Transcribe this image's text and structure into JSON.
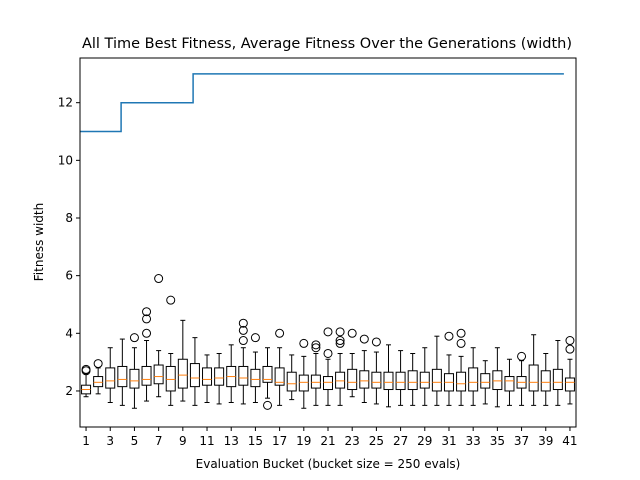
{
  "chart_data": {
    "type": "line+boxplot",
    "title": "All Time Best Fitness, Average Fitness Over the Generations (width)",
    "xlabel": "Evaluation Bucket (bucket size = 250 evals)",
    "ylabel": "Fitness width",
    "xlim": [
      0.5,
      41.5
    ],
    "ylim": [
      0.75,
      13.55
    ],
    "xticks": [
      1,
      3,
      5,
      7,
      9,
      11,
      13,
      15,
      17,
      19,
      21,
      23,
      25,
      27,
      29,
      31,
      33,
      35,
      37,
      39,
      41
    ],
    "yticks": [
      2,
      4,
      6,
      8,
      10,
      12
    ],
    "colors": {
      "best_line": "#1f77b4",
      "median": "#ff7f0e",
      "box": "#000000"
    },
    "best_fitness": {
      "x": [
        0.5,
        3.9,
        3.9,
        9.85,
        9.85,
        40.5
      ],
      "y": [
        11,
        11,
        12,
        12,
        13,
        13
      ]
    },
    "boxplots": [
      {
        "x": 1,
        "q1": 1.9,
        "median": 2.05,
        "q3": 2.2,
        "whislo": 1.8,
        "whishi": 2.6,
        "fliers": [
          2.7,
          2.75
        ]
      },
      {
        "x": 2,
        "q1": 2.15,
        "median": 2.3,
        "q3": 2.5,
        "whislo": 1.9,
        "whishi": 2.8,
        "fliers": [
          2.95
        ]
      },
      {
        "x": 3,
        "q1": 2.1,
        "median": 2.35,
        "q3": 2.8,
        "whislo": 1.6,
        "whishi": 3.5,
        "fliers": []
      },
      {
        "x": 4,
        "q1": 2.15,
        "median": 2.4,
        "q3": 2.85,
        "whislo": 1.5,
        "whishi": 3.8,
        "fliers": []
      },
      {
        "x": 5,
        "q1": 2.1,
        "median": 2.35,
        "q3": 2.75,
        "whislo": 1.4,
        "whishi": 3.5,
        "fliers": [
          3.85
        ]
      },
      {
        "x": 6,
        "q1": 2.2,
        "median": 2.4,
        "q3": 2.85,
        "whislo": 1.65,
        "whishi": 3.75,
        "fliers": [
          4.0,
          4.5,
          4.75
        ]
      },
      {
        "x": 7,
        "q1": 2.25,
        "median": 2.5,
        "q3": 2.9,
        "whislo": 1.8,
        "whishi": 3.4,
        "fliers": [
          5.9
        ]
      },
      {
        "x": 8,
        "q1": 2.0,
        "median": 2.4,
        "q3": 2.85,
        "whislo": 1.5,
        "whishi": 3.3,
        "fliers": [
          5.15
        ]
      },
      {
        "x": 9,
        "q1": 2.1,
        "median": 2.55,
        "q3": 3.1,
        "whislo": 1.65,
        "whishi": 4.45,
        "fliers": []
      },
      {
        "x": 10,
        "q1": 2.15,
        "median": 2.45,
        "q3": 2.95,
        "whislo": 1.5,
        "whishi": 3.85,
        "fliers": []
      },
      {
        "x": 11,
        "q1": 2.2,
        "median": 2.4,
        "q3": 2.8,
        "whislo": 1.6,
        "whishi": 3.25,
        "fliers": []
      },
      {
        "x": 12,
        "q1": 2.2,
        "median": 2.45,
        "q3": 2.8,
        "whislo": 1.55,
        "whishi": 3.3,
        "fliers": []
      },
      {
        "x": 13,
        "q1": 2.15,
        "median": 2.5,
        "q3": 2.85,
        "whislo": 1.6,
        "whishi": 3.6,
        "fliers": []
      },
      {
        "x": 14,
        "q1": 2.2,
        "median": 2.45,
        "q3": 2.85,
        "whislo": 1.55,
        "whishi": 3.5,
        "fliers": [
          3.75,
          4.1,
          4.35
        ]
      },
      {
        "x": 15,
        "q1": 2.15,
        "median": 2.4,
        "q3": 2.75,
        "whislo": 1.6,
        "whishi": 3.35,
        "fliers": [
          3.85
        ]
      },
      {
        "x": 16,
        "q1": 2.3,
        "median": 2.4,
        "q3": 2.85,
        "whislo": 1.75,
        "whishi": 3.5,
        "fliers": [
          1.5
        ]
      },
      {
        "x": 17,
        "q1": 2.2,
        "median": 2.3,
        "q3": 2.8,
        "whislo": 1.5,
        "whishi": 3.5,
        "fliers": [
          4.0
        ]
      },
      {
        "x": 18,
        "q1": 2.0,
        "median": 2.25,
        "q3": 2.65,
        "whislo": 1.7,
        "whishi": 3.25,
        "fliers": []
      },
      {
        "x": 19,
        "q1": 2.0,
        "median": 2.3,
        "q3": 2.55,
        "whislo": 1.4,
        "whishi": 3.2,
        "fliers": [
          3.65
        ]
      },
      {
        "x": 20,
        "q1": 2.1,
        "median": 2.3,
        "q3": 2.55,
        "whislo": 1.5,
        "whishi": 3.3,
        "fliers": [
          3.5,
          3.6
        ]
      },
      {
        "x": 21,
        "q1": 2.05,
        "median": 2.3,
        "q3": 2.5,
        "whislo": 1.5,
        "whishi": 3.1,
        "fliers": [
          3.3,
          4.05
        ]
      },
      {
        "x": 22,
        "q1": 2.1,
        "median": 2.35,
        "q3": 2.65,
        "whislo": 1.5,
        "whishi": 3.3,
        "fliers": [
          3.65,
          3.75,
          4.05
        ]
      },
      {
        "x": 23,
        "q1": 2.05,
        "median": 2.3,
        "q3": 2.75,
        "whislo": 1.8,
        "whishi": 3.3,
        "fliers": [
          4.0
        ]
      },
      {
        "x": 24,
        "q1": 2.1,
        "median": 2.35,
        "q3": 2.7,
        "whislo": 1.6,
        "whishi": 3.4,
        "fliers": [
          3.8
        ]
      },
      {
        "x": 25,
        "q1": 2.1,
        "median": 2.3,
        "q3": 2.65,
        "whislo": 1.55,
        "whishi": 3.35,
        "fliers": [
          3.7
        ]
      },
      {
        "x": 26,
        "q1": 2.05,
        "median": 2.3,
        "q3": 2.65,
        "whislo": 1.45,
        "whishi": 3.6,
        "fliers": []
      },
      {
        "x": 27,
        "q1": 2.05,
        "median": 2.3,
        "q3": 2.65,
        "whislo": 1.5,
        "whishi": 3.4,
        "fliers": []
      },
      {
        "x": 28,
        "q1": 2.05,
        "median": 2.3,
        "q3": 2.7,
        "whislo": 1.5,
        "whishi": 3.3,
        "fliers": []
      },
      {
        "x": 29,
        "q1": 2.1,
        "median": 2.3,
        "q3": 2.65,
        "whislo": 1.5,
        "whishi": 3.5,
        "fliers": []
      },
      {
        "x": 30,
        "q1": 2.0,
        "median": 2.3,
        "q3": 2.75,
        "whislo": 1.5,
        "whishi": 3.9,
        "fliers": []
      },
      {
        "x": 31,
        "q1": 2.0,
        "median": 2.3,
        "q3": 2.6,
        "whislo": 1.5,
        "whishi": 3.25,
        "fliers": [
          3.9
        ]
      },
      {
        "x": 32,
        "q1": 2.0,
        "median": 2.25,
        "q3": 2.65,
        "whislo": 1.5,
        "whishi": 3.2,
        "fliers": [
          3.65,
          4.0
        ]
      },
      {
        "x": 33,
        "q1": 2.0,
        "median": 2.3,
        "q3": 2.8,
        "whislo": 1.5,
        "whishi": 3.5,
        "fliers": []
      },
      {
        "x": 34,
        "q1": 2.1,
        "median": 2.3,
        "q3": 2.6,
        "whislo": 1.55,
        "whishi": 3.05,
        "fliers": []
      },
      {
        "x": 35,
        "q1": 2.05,
        "median": 2.35,
        "q3": 2.7,
        "whislo": 1.45,
        "whishi": 3.5,
        "fliers": []
      },
      {
        "x": 36,
        "q1": 2.0,
        "median": 2.35,
        "q3": 2.5,
        "whislo": 1.5,
        "whishi": 3.1,
        "fliers": []
      },
      {
        "x": 37,
        "q1": 2.1,
        "median": 2.3,
        "q3": 2.5,
        "whislo": 1.5,
        "whishi": 3.05,
        "fliers": [
          3.2
        ]
      },
      {
        "x": 38,
        "q1": 2.0,
        "median": 2.3,
        "q3": 2.9,
        "whislo": 1.5,
        "whishi": 3.95,
        "fliers": []
      },
      {
        "x": 39,
        "q1": 2.0,
        "median": 2.3,
        "q3": 2.7,
        "whislo": 1.5,
        "whishi": 3.3,
        "fliers": []
      },
      {
        "x": 40,
        "q1": 2.05,
        "median": 2.3,
        "q3": 2.75,
        "whislo": 1.5,
        "whishi": 3.75,
        "fliers": []
      },
      {
        "x": 41,
        "q1": 2.0,
        "median": 2.3,
        "q3": 2.45,
        "whislo": 1.55,
        "whishi": 3.1,
        "fliers": [
          3.45,
          3.75
        ]
      }
    ]
  }
}
